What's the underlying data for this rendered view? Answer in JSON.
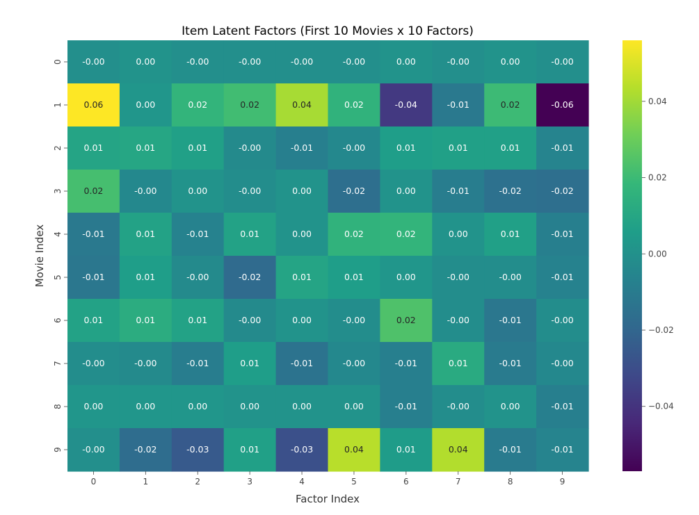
{
  "chart_data": {
    "type": "heatmap",
    "title": "Item Latent Factors (First 10 Movies x 10 Factors)",
    "xlabel": "Factor Index",
    "ylabel": "Movie Index",
    "x_categories": [
      "0",
      "1",
      "2",
      "3",
      "4",
      "5",
      "6",
      "7",
      "8",
      "9"
    ],
    "y_categories": [
      "0",
      "1",
      "2",
      "3",
      "4",
      "5",
      "6",
      "7",
      "8",
      "9"
    ],
    "values": [
      [
        -0.001,
        0.001,
        -0.001,
        -0.001,
        -0.001,
        -0.001,
        0.001,
        -0.001,
        0.001,
        -0.001
      ],
      [
        0.056,
        0.002,
        0.017,
        0.021,
        0.041,
        0.016,
        -0.038,
        -0.011,
        0.02,
        -0.057
      ],
      [
        0.009,
        0.01,
        0.007,
        -0.003,
        -0.008,
        -0.004,
        0.006,
        0.007,
        0.007,
        -0.006
      ],
      [
        0.022,
        -0.004,
        0.001,
        -0.002,
        0.001,
        -0.016,
        0.001,
        -0.009,
        -0.015,
        -0.016
      ],
      [
        -0.011,
        0.008,
        -0.007,
        0.008,
        0.001,
        0.016,
        0.017,
        0.001,
        0.007,
        -0.008
      ],
      [
        -0.012,
        0.006,
        -0.003,
        -0.018,
        0.009,
        0.006,
        0.002,
        -0.002,
        -0.002,
        -0.007
      ],
      [
        0.008,
        0.013,
        0.008,
        -0.003,
        0.001,
        -0.002,
        0.024,
        -0.002,
        -0.012,
        -0.002
      ],
      [
        -0.002,
        -0.003,
        -0.009,
        0.006,
        -0.014,
        -0.004,
        -0.008,
        0.012,
        -0.01,
        -0.004
      ],
      [
        0.002,
        0.002,
        0.002,
        0.001,
        0.001,
        0.001,
        -0.008,
        -0.002,
        0.001,
        -0.008
      ],
      [
        -0.001,
        -0.017,
        -0.025,
        0.007,
        -0.029,
        0.044,
        0.005,
        0.043,
        -0.01,
        -0.006
      ]
    ],
    "labels": [
      [
        "-0.00",
        "0.00",
        "-0.00",
        "-0.00",
        "-0.00",
        "-0.00",
        "0.00",
        "-0.00",
        "0.00",
        "-0.00"
      ],
      [
        "0.06",
        "0.00",
        "0.02",
        "0.02",
        "0.04",
        "0.02",
        "-0.04",
        "-0.01",
        "0.02",
        "-0.06"
      ],
      [
        "0.01",
        "0.01",
        "0.01",
        "-0.00",
        "-0.01",
        "-0.00",
        "0.01",
        "0.01",
        "0.01",
        "-0.01"
      ],
      [
        "0.02",
        "-0.00",
        "0.00",
        "-0.00",
        "0.00",
        "-0.02",
        "0.00",
        "-0.01",
        "-0.02",
        "-0.02"
      ],
      [
        "-0.01",
        "0.01",
        "-0.01",
        "0.01",
        "0.00",
        "0.02",
        "0.02",
        "0.00",
        "0.01",
        "-0.01"
      ],
      [
        "-0.01",
        "0.01",
        "-0.00",
        "-0.02",
        "0.01",
        "0.01",
        "0.00",
        "-0.00",
        "-0.00",
        "-0.01"
      ],
      [
        "0.01",
        "0.01",
        "0.01",
        "-0.00",
        "0.00",
        "-0.00",
        "0.02",
        "-0.00",
        "-0.01",
        "-0.00"
      ],
      [
        "-0.00",
        "-0.00",
        "-0.01",
        "0.01",
        "-0.01",
        "-0.00",
        "-0.01",
        "0.01",
        "-0.01",
        "-0.00"
      ],
      [
        "0.00",
        "0.00",
        "0.00",
        "0.00",
        "0.00",
        "0.00",
        "-0.01",
        "-0.00",
        "0.00",
        "-0.01"
      ],
      [
        "-0.00",
        "-0.02",
        "-0.03",
        "0.01",
        "-0.03",
        "0.04",
        "0.01",
        "0.04",
        "-0.01",
        "-0.01"
      ]
    ],
    "colormap": "viridis",
    "colorbar": {
      "range": [
        -0.057,
        0.056
      ],
      "ticks": [
        0.04,
        0.02,
        0.0,
        -0.02,
        -0.04
      ],
      "tick_labels": [
        "0.04",
        "0.02",
        "0.00",
        "−0.02",
        "−0.04"
      ]
    },
    "viridis_stops": [
      "#440154",
      "#482878",
      "#3e4989",
      "#31688e",
      "#26828e",
      "#1f9e89",
      "#35b779",
      "#6ece58",
      "#b5de2b",
      "#fde725"
    ],
    "grid": false,
    "legend": "colorbar-right"
  }
}
